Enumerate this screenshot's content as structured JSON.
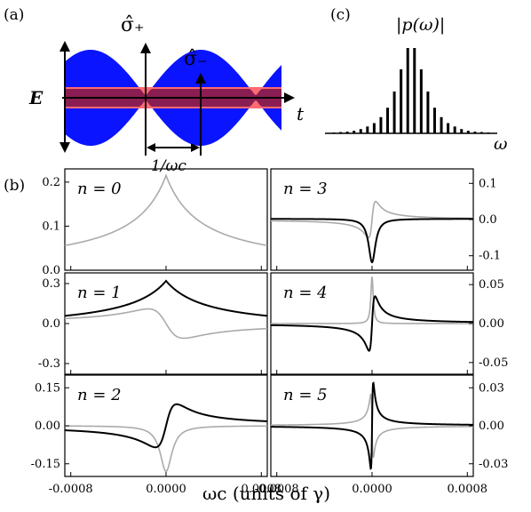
{
  "panels": {
    "a": {
      "label": "(a)",
      "sigma_plus": "σ̂₊",
      "sigma_minus": "σ̂₋",
      "field": "E",
      "time": "t",
      "period": "1/ωc",
      "colors": {
        "envelope": "#0a14ff",
        "pulse": "#ff6a73",
        "overlap": "#8a1e52"
      }
    },
    "c": {
      "label": "(c)",
      "ylabel": "|p(ω)|",
      "xlabel": "ω"
    },
    "b": {
      "label": "(b)",
      "xlabel": "ωc (units of γ)"
    }
  },
  "chart_data": [
    {
      "type": "bar",
      "panel": "c",
      "title": "",
      "xlabel": "ω",
      "ylabel": "|p(ω)|",
      "values": [
        0.01,
        0.015,
        0.02,
        0.03,
        0.05,
        0.08,
        0.12,
        0.19,
        0.3,
        0.49,
        0.75,
        1.0,
        1.0,
        0.75,
        0.49,
        0.3,
        0.19,
        0.12,
        0.08,
        0.05,
        0.03,
        0.02,
        0.015,
        0.01
      ]
    },
    {
      "type": "line",
      "panel": "n0",
      "label": "n = 0",
      "xlim": [
        -0.00085,
        0.00085
      ],
      "ylim": [
        0.0,
        0.23
      ],
      "yticks": [
        "0.2",
        "0.1",
        "0.0"
      ],
      "ytick_values": [
        0.2,
        0.1,
        0.0
      ],
      "yaxis": "left",
      "xticks": [],
      "series": [
        {
          "color": "#aaaaaa",
          "shape": "cusp",
          "peak": 0.215,
          "base": 0.0,
          "width": 0.0003
        }
      ]
    },
    {
      "type": "line",
      "panel": "n3",
      "label": "n = 3",
      "xlim": [
        -0.00085,
        0.00085
      ],
      "ylim": [
        -0.14,
        0.14
      ],
      "yticks": [
        "0.1",
        "0.0",
        "-0.1"
      ],
      "ytick_values": [
        0.1,
        0.0,
        -0.1
      ],
      "yaxis": "right",
      "xticks": [],
      "series": [
        {
          "color": "#aaaaaa",
          "shape": "dispersive",
          "amp": 0.05,
          "width": 3e-05,
          "offset": 0.0
        },
        {
          "color": "#000000",
          "shape": "dip",
          "amp": -0.12,
          "width": 3.5e-05,
          "offset": 0.002
        }
      ]
    },
    {
      "type": "line",
      "panel": "n1",
      "label": "n = 1",
      "xlim": [
        -0.00085,
        0.00085
      ],
      "ylim": [
        -0.38,
        0.38
      ],
      "yticks": [
        "0.3",
        "0.0",
        "-0.3"
      ],
      "ytick_values": [
        0.3,
        0.0,
        -0.3
      ],
      "yaxis": "left",
      "xticks": [],
      "series": [
        {
          "color": "#aaaaaa",
          "shape": "dispersive",
          "amp": -0.11,
          "width": 0.00015,
          "offset": 0.0
        },
        {
          "color": "#000000",
          "shape": "cusp",
          "peak": 0.32,
          "base": -0.05,
          "width": 0.00035
        }
      ]
    },
    {
      "type": "line",
      "panel": "n4",
      "label": "n = 4",
      "xlim": [
        -0.00085,
        0.00085
      ],
      "ylim": [
        -0.065,
        0.065
      ],
      "yticks": [
        "0.05",
        "0.00",
        "-0.05"
      ],
      "ytick_values": [
        0.05,
        0.0,
        -0.05
      ],
      "yaxis": "right",
      "xticks": [],
      "series": [
        {
          "color": "#aaaaaa",
          "shape": "sharp",
          "amp": 0.06,
          "width": 1.2e-05,
          "offset": 0.0
        },
        {
          "color": "#000000",
          "shape": "dispersive",
          "amp": 0.035,
          "width": 2.5e-05,
          "offset": 0.0
        }
      ]
    },
    {
      "type": "line",
      "panel": "n2",
      "label": "n = 2",
      "xlim": [
        -0.00085,
        0.00085
      ],
      "ylim": [
        -0.2,
        0.2
      ],
      "yticks": [
        "0.15",
        "0.00",
        "-0.15"
      ],
      "ytick_values": [
        0.15,
        0.0,
        -0.15
      ],
      "yaxis": "left",
      "xticks": [
        "-0.0008",
        "0.0000",
        "0.0008"
      ],
      "xtick_values": [
        -0.0008,
        0.0,
        0.0008
      ],
      "series": [
        {
          "color": "#aaaaaa",
          "shape": "dip",
          "amp": -0.18,
          "width": 6e-05,
          "offset": 0.0
        },
        {
          "color": "#000000",
          "shape": "dispersive",
          "amp": 0.085,
          "width": 9e-05,
          "offset": 0.0
        }
      ]
    },
    {
      "type": "line",
      "panel": "n5",
      "label": "n = 5",
      "xlim": [
        -0.00085,
        0.00085
      ],
      "ylim": [
        -0.04,
        0.04
      ],
      "yticks": [
        "0.03",
        "0.00",
        "-0.03"
      ],
      "ytick_values": [
        0.03,
        0.0,
        -0.03
      ],
      "yaxis": "right",
      "xticks": [
        "-0.0008",
        "0.0000",
        "0.0008"
      ],
      "xtick_values": [
        -0.0008,
        0.0,
        0.0008
      ],
      "series": [
        {
          "color": "#aaaaaa",
          "shape": "dispersive",
          "amp": -0.025,
          "width": 1e-05,
          "offset": 0.0
        },
        {
          "color": "#000000",
          "shape": "dispersive",
          "amp": 0.034,
          "width": 1e-05,
          "offset": 0.0
        }
      ]
    }
  ]
}
